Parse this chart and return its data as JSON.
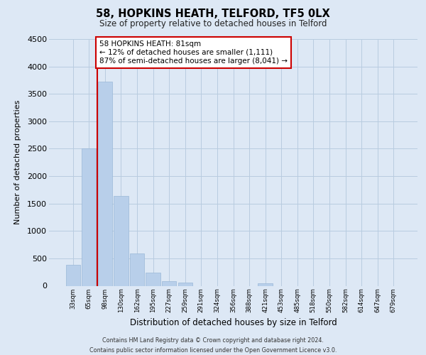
{
  "title": "58, HOPKINS HEATH, TELFORD, TF5 0LX",
  "subtitle": "Size of property relative to detached houses in Telford",
  "xlabel": "Distribution of detached houses by size in Telford",
  "ylabel": "Number of detached properties",
  "categories": [
    "33sqm",
    "65sqm",
    "98sqm",
    "130sqm",
    "162sqm",
    "195sqm",
    "227sqm",
    "259sqm",
    "291sqm",
    "324sqm",
    "356sqm",
    "388sqm",
    "421sqm",
    "453sqm",
    "485sqm",
    "518sqm",
    "550sqm",
    "582sqm",
    "614sqm",
    "647sqm",
    "679sqm"
  ],
  "values": [
    380,
    2500,
    3720,
    1640,
    595,
    240,
    90,
    55,
    0,
    0,
    0,
    0,
    45,
    0,
    0,
    0,
    0,
    0,
    0,
    0,
    0
  ],
  "bar_color": "#b8cfea",
  "bar_edge_color": "#9ab8d8",
  "highlight_line_color": "#cc0000",
  "annotation_line1": "58 HOPKINS HEATH: 81sqm",
  "annotation_line2": "← 12% of detached houses are smaller (1,111)",
  "annotation_line3": "87% of semi-detached houses are larger (8,041) →",
  "annotation_box_edge": "#cc0000",
  "ylim": [
    0,
    4500
  ],
  "yticks": [
    0,
    500,
    1000,
    1500,
    2000,
    2500,
    3000,
    3500,
    4000,
    4500
  ],
  "footer_line1": "Contains HM Land Registry data © Crown copyright and database right 2024.",
  "footer_line2": "Contains public sector information licensed under the Open Government Licence v3.0.",
  "bg_color": "#dde8f5",
  "plot_bg_color": "#dde8f5",
  "grid_color": "#b8cce0"
}
